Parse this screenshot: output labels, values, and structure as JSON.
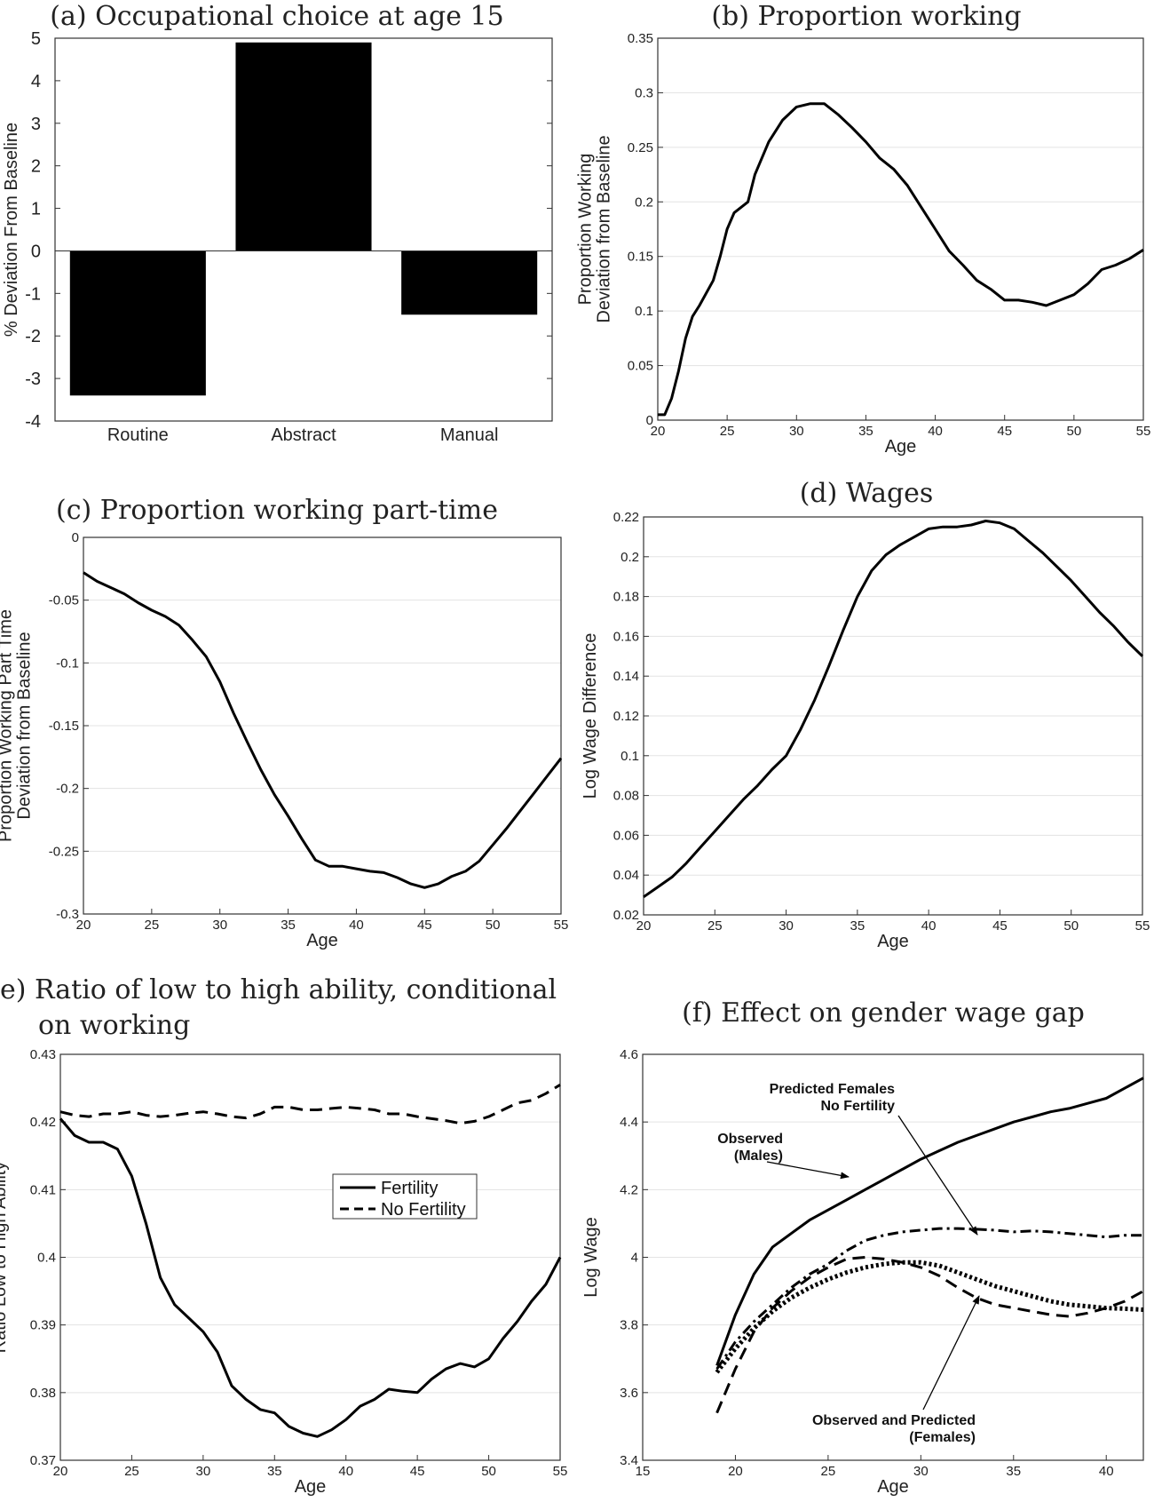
{
  "chart_data": [
    {
      "id": "a",
      "type": "bar",
      "title": "(a) Occupational choice at age 15",
      "ylabel": "% Deviation From Baseline",
      "xlabel": "",
      "categories": [
        "Routine",
        "Abstract",
        "Manual"
      ],
      "values": [
        -3.4,
        4.9,
        -1.5
      ],
      "ylim": [
        -4,
        5
      ],
      "yticks": [
        -4,
        -3,
        -2,
        -1,
        0,
        1,
        2,
        3,
        4,
        5
      ],
      "yticklabels": [
        "-4",
        "-3",
        "-2",
        "-1",
        "0",
        "1",
        "2",
        "3",
        "4",
        "5"
      ],
      "grid": false
    },
    {
      "id": "b",
      "type": "line",
      "title": "(b) Proportion working",
      "ylabel": "Proportion Working\nDeviation from Baseline",
      "xlabel": "Age",
      "xlim": [
        20,
        55
      ],
      "ylim": [
        0,
        0.35
      ],
      "xticks": [
        20,
        25,
        30,
        35,
        40,
        45,
        50,
        55
      ],
      "xticklabels": [
        "20",
        "25",
        "30",
        "35",
        "40",
        "45",
        "50",
        "55"
      ],
      "yticks": [
        0,
        0.05,
        0.1,
        0.15,
        0.2,
        0.25,
        0.3,
        0.35
      ],
      "yticklabels": [
        "0",
        "0.05",
        "0.1",
        "0.15",
        "0.2",
        "0.25",
        "0.3",
        "0.35"
      ],
      "grid": true,
      "series": [
        {
          "style": "solid",
          "x": [
            20,
            20.5,
            21,
            21.5,
            22,
            22.5,
            23,
            24,
            24.5,
            25,
            25.5,
            26,
            26.5,
            27,
            28,
            29,
            30,
            31,
            32,
            33,
            34,
            35,
            36,
            37,
            38,
            39,
            40,
            41,
            42,
            43,
            44,
            45,
            46,
            47,
            48,
            49,
            50,
            51,
            52,
            53,
            54,
            55
          ],
          "y": [
            0.005,
            0.005,
            0.02,
            0.045,
            0.075,
            0.095,
            0.105,
            0.128,
            0.15,
            0.175,
            0.19,
            0.195,
            0.2,
            0.225,
            0.255,
            0.275,
            0.287,
            0.29,
            0.29,
            0.28,
            0.268,
            0.255,
            0.24,
            0.23,
            0.215,
            0.195,
            0.175,
            0.155,
            0.142,
            0.128,
            0.12,
            0.11,
            0.11,
            0.108,
            0.105,
            0.11,
            0.115,
            0.125,
            0.138,
            0.142,
            0.148,
            0.156
          ]
        }
      ]
    },
    {
      "id": "c",
      "type": "line",
      "title": "(c) Proportion working part-time",
      "ylabel": "Proportion Working Part Time\nDeviation from Baseline",
      "xlabel": "Age",
      "xlim": [
        20,
        55
      ],
      "ylim": [
        -0.3,
        0
      ],
      "xticks": [
        20,
        25,
        30,
        35,
        40,
        45,
        50,
        55
      ],
      "xticklabels": [
        "20",
        "25",
        "30",
        "35",
        "40",
        "45",
        "50",
        "55"
      ],
      "yticks": [
        -0.3,
        -0.25,
        -0.2,
        -0.15,
        -0.1,
        -0.05,
        0
      ],
      "yticklabels": [
        "-0.3",
        "-0.25",
        "-0.2",
        "-0.15",
        "-0.1",
        "-0.05",
        "0"
      ],
      "grid": true,
      "series": [
        {
          "style": "solid",
          "x": [
            20,
            21,
            22,
            23,
            24,
            25,
            26,
            27,
            28,
            29,
            30,
            31,
            32,
            33,
            34,
            35,
            36,
            37,
            38,
            39,
            40,
            41,
            42,
            43,
            44,
            45,
            46,
            47,
            48,
            49,
            50,
            51,
            52,
            53,
            54,
            55
          ],
          "y": [
            -0.028,
            -0.035,
            -0.04,
            -0.045,
            -0.052,
            -0.058,
            -0.063,
            -0.07,
            -0.082,
            -0.095,
            -0.115,
            -0.14,
            -0.163,
            -0.185,
            -0.205,
            -0.222,
            -0.24,
            -0.257,
            -0.262,
            -0.262,
            -0.264,
            -0.266,
            -0.267,
            -0.271,
            -0.276,
            -0.279,
            -0.276,
            -0.27,
            -0.266,
            -0.258,
            -0.245,
            -0.232,
            -0.218,
            -0.204,
            -0.19,
            -0.176
          ]
        }
      ]
    },
    {
      "id": "d",
      "type": "line",
      "title": "(d) Wages",
      "ylabel": "Log Wage Difference",
      "xlabel": "Age",
      "xlim": [
        20,
        55
      ],
      "ylim": [
        0.02,
        0.22
      ],
      "xticks": [
        20,
        25,
        30,
        35,
        40,
        45,
        50,
        55
      ],
      "xticklabels": [
        "20",
        "25",
        "30",
        "35",
        "40",
        "45",
        "50",
        "55"
      ],
      "yticks": [
        0.02,
        0.04,
        0.06,
        0.08,
        0.1,
        0.12,
        0.14,
        0.16,
        0.18,
        0.2,
        0.22
      ],
      "yticklabels": [
        "0.02",
        "0.04",
        "0.06",
        "0.08",
        "0.1",
        "0.12",
        "0.14",
        "0.16",
        "0.18",
        "0.2",
        "0.22"
      ],
      "grid": true,
      "series": [
        {
          "style": "solid",
          "x": [
            20,
            21,
            22,
            23,
            24,
            25,
            26,
            27,
            28,
            29,
            30,
            31,
            32,
            33,
            34,
            35,
            36,
            37,
            38,
            39,
            40,
            41,
            42,
            43,
            44,
            45,
            46,
            47,
            48,
            49,
            50,
            51,
            52,
            53,
            54,
            55
          ],
          "y": [
            0.029,
            0.034,
            0.039,
            0.046,
            0.054,
            0.062,
            0.07,
            0.078,
            0.085,
            0.093,
            0.1,
            0.113,
            0.128,
            0.145,
            0.163,
            0.18,
            0.193,
            0.201,
            0.206,
            0.21,
            0.214,
            0.215,
            0.215,
            0.216,
            0.218,
            0.217,
            0.214,
            0.208,
            0.202,
            0.195,
            0.188,
            0.18,
            0.172,
            0.165,
            0.157,
            0.15
          ]
        }
      ]
    },
    {
      "id": "e",
      "type": "line",
      "title": "e) Ratio of low to high ability, conditional\non working",
      "ylabel": "Ratio Low to High Ability",
      "xlabel": "Age",
      "xlim": [
        20,
        55
      ],
      "ylim": [
        0.37,
        0.43
      ],
      "xticks": [
        20,
        25,
        30,
        35,
        40,
        45,
        50,
        55
      ],
      "xticklabels": [
        "20",
        "25",
        "30",
        "35",
        "40",
        "45",
        "50",
        "55"
      ],
      "yticks": [
        0.37,
        0.38,
        0.39,
        0.4,
        0.41,
        0.42,
        0.43
      ],
      "yticklabels": [
        "0.37",
        "0.38",
        "0.39",
        "0.4",
        "0.41",
        "0.42",
        "0.43"
      ],
      "grid": true,
      "legend": "center-right",
      "series": [
        {
          "name": "Fertility",
          "style": "solid",
          "x": [
            20,
            21,
            22,
            23,
            24,
            25,
            26,
            27,
            28,
            29,
            30,
            31,
            32,
            33,
            34,
            35,
            36,
            37,
            38,
            39,
            40,
            41,
            42,
            43,
            44,
            45,
            46,
            47,
            48,
            49,
            50,
            51,
            52,
            53,
            54,
            55
          ],
          "y": [
            0.4205,
            0.418,
            0.417,
            0.417,
            0.416,
            0.412,
            0.405,
            0.397,
            0.393,
            0.391,
            0.389,
            0.386,
            0.381,
            0.379,
            0.3775,
            0.377,
            0.375,
            0.374,
            0.3735,
            0.3745,
            0.376,
            0.378,
            0.379,
            0.3805,
            0.3802,
            0.38,
            0.382,
            0.3835,
            0.3843,
            0.3838,
            0.385,
            0.388,
            0.3905,
            0.3935,
            0.396,
            0.4
          ]
        },
        {
          "name": "No Fertility",
          "style": "dashed",
          "x": [
            20,
            21,
            22,
            23,
            24,
            25,
            26,
            27,
            28,
            29,
            30,
            31,
            32,
            33,
            34,
            35,
            36,
            37,
            38,
            39,
            40,
            41,
            42,
            43,
            44,
            45,
            46,
            47,
            48,
            49,
            50,
            51,
            52,
            53,
            54,
            55
          ],
          "y": [
            0.4215,
            0.421,
            0.4208,
            0.4212,
            0.4212,
            0.4215,
            0.421,
            0.4208,
            0.421,
            0.4213,
            0.4215,
            0.4212,
            0.4208,
            0.4206,
            0.4212,
            0.4222,
            0.4222,
            0.4218,
            0.4218,
            0.422,
            0.4222,
            0.422,
            0.4218,
            0.4212,
            0.4212,
            0.4208,
            0.4205,
            0.4202,
            0.4198,
            0.4201,
            0.4208,
            0.4218,
            0.4228,
            0.4232,
            0.4242,
            0.4255
          ]
        }
      ]
    },
    {
      "id": "f",
      "type": "line",
      "title": "(f) Effect on gender wage gap",
      "ylabel": "Log Wage",
      "xlabel": "Age",
      "xlim": [
        15,
        42
      ],
      "ylim": [
        3.4,
        4.6
      ],
      "xticks": [
        15,
        20,
        25,
        30,
        35,
        40
      ],
      "xticklabels": [
        "15",
        "20",
        "25",
        "30",
        "35",
        "40"
      ],
      "yticks": [
        3.4,
        3.6,
        3.8,
        4,
        4.2,
        4.4,
        4.6
      ],
      "yticklabels": [
        "3.4",
        "3.6",
        "3.8",
        "4",
        "4.2",
        "4.4",
        "4.6"
      ],
      "grid": true,
      "annotations": [
        {
          "text": "Predicted Females",
          "anchor": "end"
        },
        {
          "text": "No Fertility",
          "anchor": "end"
        },
        {
          "text": "Observed",
          "anchor": "end"
        },
        {
          "text": "(Males)",
          "anchor": "end"
        },
        {
          "text": "Observed and Predicted",
          "anchor": "end"
        },
        {
          "text": "(Females)",
          "anchor": "end"
        }
      ],
      "series": [
        {
          "style": "solid",
          "x": [
            19,
            20,
            21,
            22,
            23,
            24,
            25,
            26,
            27,
            28,
            29,
            30,
            31,
            32,
            33,
            34,
            35,
            36,
            37,
            38,
            39,
            40,
            41,
            42
          ],
          "y": [
            3.68,
            3.83,
            3.95,
            4.03,
            4.07,
            4.11,
            4.14,
            4.17,
            4.2,
            4.23,
            4.26,
            4.29,
            4.315,
            4.34,
            4.36,
            4.38,
            4.4,
            4.415,
            4.43,
            4.44,
            4.455,
            4.47,
            4.5,
            4.53
          ]
        },
        {
          "style": "dashdot",
          "x": [
            19,
            20,
            21,
            22,
            23,
            24,
            25,
            26,
            27,
            28,
            29,
            30,
            31,
            32,
            33,
            34,
            35,
            36,
            37,
            38,
            39,
            40,
            41,
            42
          ],
          "y": [
            3.67,
            3.75,
            3.81,
            3.86,
            3.91,
            3.95,
            3.98,
            4.02,
            4.05,
            4.065,
            4.075,
            4.08,
            4.085,
            4.085,
            4.083,
            4.08,
            4.075,
            4.078,
            4.075,
            4.07,
            4.065,
            4.06,
            4.065,
            4.065
          ]
        },
        {
          "style": "dashed",
          "x": [
            19,
            20,
            21,
            22,
            23,
            24,
            25,
            26,
            27,
            28,
            29,
            30,
            31,
            32,
            33,
            34,
            35,
            36,
            37,
            38,
            39,
            40,
            41,
            42
          ],
          "y": [
            3.54,
            3.67,
            3.78,
            3.85,
            3.9,
            3.94,
            3.97,
            3.995,
            4.0,
            3.995,
            3.985,
            3.97,
            3.945,
            3.91,
            3.88,
            3.86,
            3.85,
            3.84,
            3.83,
            3.825,
            3.835,
            3.85,
            3.87,
            3.9
          ]
        },
        {
          "style": "dotted",
          "x": [
            19,
            20,
            21,
            22,
            23,
            24,
            25,
            26,
            27,
            28,
            29,
            30,
            31,
            32,
            33,
            34,
            35,
            36,
            37,
            38,
            39,
            40,
            41,
            42
          ],
          "y": [
            3.66,
            3.73,
            3.79,
            3.84,
            3.88,
            3.91,
            3.935,
            3.955,
            3.97,
            3.98,
            3.985,
            3.985,
            3.975,
            3.955,
            3.935,
            3.915,
            3.9,
            3.885,
            3.87,
            3.86,
            3.855,
            3.85,
            3.848,
            3.845
          ]
        }
      ]
    }
  ]
}
